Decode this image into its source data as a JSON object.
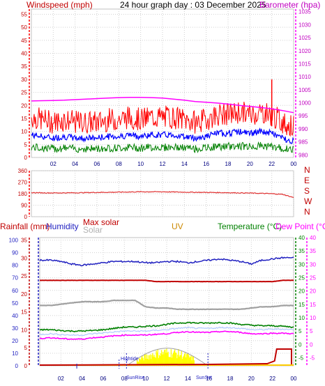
{
  "title": "24 hour graph day : 03 December 2025",
  "colors": {
    "windspeed": "#ff0000",
    "gust": "#ff0000",
    "avg_wind": "#0000ff",
    "wind_green": "#008000",
    "barometer": "#ff00ff",
    "direction": "#e03030",
    "rainfall": "#c00000",
    "humidity": "#2020c0",
    "max_solar": "#c00000",
    "solar": "#a0a0a0",
    "uv": "#cc8800",
    "temperature": "#008000",
    "dew_point": "#ff00ff",
    "grid": "#d0d0d0"
  },
  "chart_data": [
    {
      "type": "line",
      "panel": "wind_barometer",
      "title": "24 hour graph day : 03 December 2025",
      "y_left_label": "Windspeed (mph)",
      "y_right_label": "Barometer (hpa)",
      "y_left_ticks": [
        "0",
        "5",
        "10",
        "15",
        "20",
        "25",
        "30",
        "35",
        "40",
        "45",
        "50",
        "55"
      ],
      "y_right_ticks": [
        "980",
        "985",
        "990",
        "995",
        "1000",
        "1005",
        "1010",
        "1015",
        "1020",
        "1025",
        "1030",
        "1035"
      ],
      "ylim_left": [
        0,
        57
      ],
      "ylim_right": [
        979,
        1036
      ],
      "x_ticks": [
        "02",
        "04",
        "06",
        "08",
        "10",
        "12",
        "14",
        "16",
        "18",
        "20",
        "22",
        "00"
      ],
      "x_hours": [
        0,
        1,
        2,
        3,
        4,
        5,
        6,
        7,
        8,
        9,
        10,
        11,
        12,
        13,
        14,
        15,
        16,
        17,
        18,
        19,
        20,
        21,
        22,
        23,
        24
      ],
      "series": [
        {
          "name": "Windspeed (mph)",
          "values": [
            14,
            13,
            12,
            13,
            12,
            12,
            12,
            13,
            13,
            14,
            13,
            14,
            14,
            14,
            13,
            12,
            13,
            15,
            15,
            16,
            15,
            16,
            15,
            12,
            10
          ]
        },
        {
          "name": "Barometer (hpa)",
          "values": [
            1000.7,
            1000.8,
            1000.9,
            1001.0,
            1001.2,
            1001.4,
            1001.6,
            1001.8,
            1002.0,
            1002.1,
            1002.1,
            1002.0,
            1001.8,
            1001.4,
            1001.0,
            1000.5,
            1000.2,
            999.9,
            999.5,
            999.0,
            998.6,
            998.2,
            997.7,
            997.0,
            996.2
          ]
        }
      ],
      "spike": {
        "hour": 22.0,
        "value": 30
      }
    },
    {
      "type": "line",
      "panel": "direction",
      "y_ticks": [
        "0",
        "90",
        "180",
        "270",
        "360"
      ],
      "y_right_labels": [
        "N",
        "W",
        "S",
        "E",
        "N"
      ],
      "ylim": [
        0,
        360
      ],
      "x_hours": [
        0,
        2,
        4,
        6,
        8,
        10,
        12,
        14,
        16,
        18,
        20,
        22,
        23,
        24
      ],
      "series": [
        {
          "name": "Direction",
          "values": [
            188,
            186,
            187,
            190,
            192,
            195,
            195,
            192,
            190,
            188,
            185,
            180,
            175,
            150
          ]
        }
      ]
    },
    {
      "type": "line",
      "panel": "rain_humidity_solar_temp",
      "legend": [
        "Rainfall (mm)",
        "Humidity",
        "Max solar",
        "Solar",
        "UV",
        "Temperature (°C)",
        "Dew Point (°C)"
      ],
      "y_rain_ticks": [
        "0",
        "5",
        "10",
        "15",
        "20",
        "25",
        "30",
        "35"
      ],
      "y_humidity_ticks": [
        "0",
        "10",
        "20",
        "30",
        "40",
        "50",
        "60",
        "70",
        "80",
        "90",
        "100"
      ],
      "y_temp_ticks": [
        "-5",
        "0",
        "5",
        "10",
        "15",
        "20",
        "25",
        "30",
        "35",
        "40"
      ],
      "ylim_humidity": [
        0,
        102
      ],
      "ylim_temp": [
        -8,
        40
      ],
      "x_ticks": [
        "02",
        "04",
        "06",
        "08",
        "10",
        "12",
        "14",
        "16",
        "18",
        "20",
        "22",
        "00"
      ],
      "annotations": [
        "Hightide",
        "SunRise",
        "SunSet"
      ],
      "x_hours": [
        0,
        1,
        2,
        3,
        4,
        5,
        6,
        7,
        8,
        9,
        10,
        11,
        12,
        13,
        14,
        15,
        16,
        17,
        18,
        19,
        20,
        21,
        22,
        23,
        24
      ],
      "series": [
        {
          "name": "Humidity",
          "values": [
            84,
            84,
            83,
            81,
            80,
            81,
            82,
            83,
            83,
            83,
            82,
            82,
            83,
            83,
            82,
            83,
            84,
            85,
            84,
            83,
            81,
            84,
            85,
            86,
            86
          ]
        },
        {
          "name": "Temperature (°C)",
          "values": [
            5.5,
            5.5,
            5.2,
            5.0,
            5.0,
            5.2,
            5.5,
            6.0,
            6.5,
            6.5,
            6.8,
            7.0,
            7.5,
            8.0,
            8.2,
            8.0,
            8.0,
            8.2,
            8.0,
            7.5,
            7.2,
            7.0,
            7.0,
            6.8,
            6.5
          ]
        },
        {
          "name": "Dew Point (°C)",
          "values": [
            2.2,
            2.5,
            2.2,
            2.0,
            2.0,
            2.5,
            2.8,
            3.2,
            3.5,
            3.5,
            3.5,
            3.8,
            4.0,
            4.5,
            4.8,
            4.5,
            4.5,
            4.8,
            4.8,
            4.5,
            4.0,
            4.0,
            4.2,
            4.2,
            4.0
          ]
        },
        {
          "name": "Max solar",
          "values": [
            68,
            68,
            68,
            68,
            68,
            68,
            68,
            68,
            68,
            68,
            68,
            67,
            67,
            67,
            67,
            67,
            67,
            67,
            67,
            67,
            67,
            67,
            67,
            68,
            68
          ]
        },
        {
          "name": "Solar",
          "values": [
            48,
            48,
            49,
            50,
            51,
            51,
            51,
            52,
            52,
            52,
            47,
            46,
            46,
            45,
            45,
            45,
            45,
            45,
            45,
            45,
            46,
            47,
            47,
            48,
            48
          ]
        }
      ],
      "solar_curve_peak": 14,
      "rain_total_end": 15
    }
  ]
}
